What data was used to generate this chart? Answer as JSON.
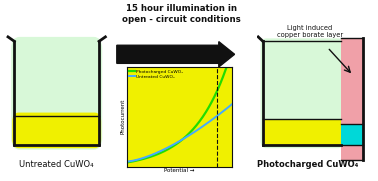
{
  "title_arrow": "15 hour illumination in\nopen - circuit conditions",
  "label_left": "Untreated CuWO₄",
  "label_right": "Photocharged CuWO₄",
  "annotation_right": "Light induced\ncopper borate layer",
  "legend_green": "Photocharged CuWO₄",
  "legend_blue": "Untreated CuWO₄",
  "xlabel": "Potential →",
  "ylabel": "Photocurrent",
  "bg_color": "#ffffff",
  "plot_bg": "#f0f000",
  "light_green": "#d8f8d8",
  "yellow": "#f0f000",
  "pink": "#f0a0a8",
  "cyan": "#00d8d8",
  "black": "#111111",
  "green_line": "#22dd00",
  "blue_line": "#44aaff",
  "arrow_color": "#111111"
}
